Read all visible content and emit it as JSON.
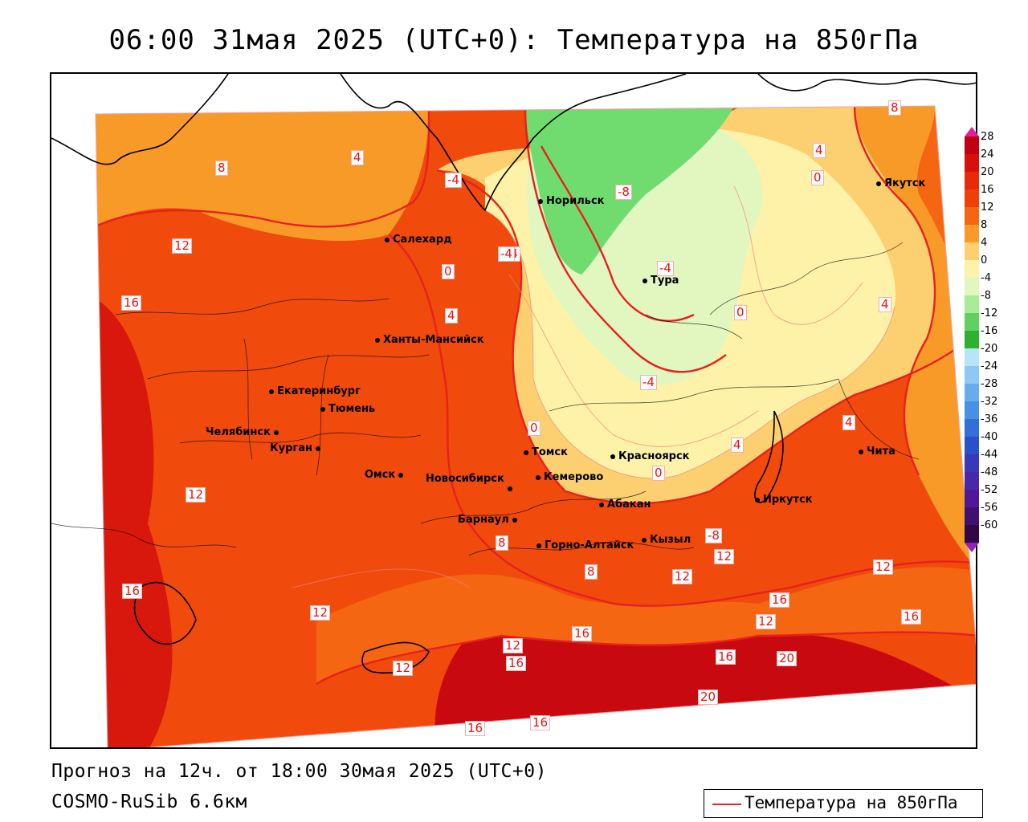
{
  "title": "06:00 31мая 2025 (UTC+0): Температура на 850гПа",
  "footer": {
    "forecast": "Прогноз на 12ч. от 18:00 30мая 2025 (UTC+0)",
    "model": "COSMO-RuSib 6.6км"
  },
  "legend": {
    "label": "Температура на 850гПа",
    "line_color": "#ee2222"
  },
  "colorbar": {
    "labels": [
      "28",
      "24",
      "20",
      "16",
      "12",
      "8",
      "4",
      "0",
      "-4",
      "-8",
      "-12",
      "-16",
      "-20",
      "-24",
      "-28",
      "-32",
      "-36",
      "-40",
      "-44",
      "-48",
      "-52",
      "-56",
      "-60"
    ],
    "colors": [
      "#c00010",
      "#d8100c",
      "#e82a0a",
      "#f0400a",
      "#f46612",
      "#f89a28",
      "#fcd070",
      "#fdf2a8",
      "#e2f6c0",
      "#a8ec98",
      "#60d060",
      "#30b030",
      "#b8e4f8",
      "#90c8f4",
      "#68acee",
      "#4890e4",
      "#3070d8",
      "#2850c8",
      "#3838b8",
      "#4828a8",
      "#501898",
      "#401070",
      "#300848"
    ]
  },
  "cities": [
    {
      "name": "Норильск"
    },
    {
      "name": "Тура"
    },
    {
      "name": "Якутск"
    },
    {
      "name": "Салехард"
    },
    {
      "name": "Ханты-Мансийск"
    },
    {
      "name": "Екатеринбург"
    },
    {
      "name": "Тюмень"
    },
    {
      "name": "Челябинск"
    },
    {
      "name": "Курган"
    },
    {
      "name": "Омск"
    },
    {
      "name": "Новосибирск"
    },
    {
      "name": "Томск"
    },
    {
      "name": "Кемерово"
    },
    {
      "name": "Красноярск"
    },
    {
      "name": "Абакан"
    },
    {
      "name": "Барнаул"
    },
    {
      "name": "Горно-Алтайск"
    },
    {
      "name": "Кызыл"
    },
    {
      "name": "Иркутск"
    },
    {
      "name": "Чита"
    }
  ],
  "isotherm_labels": [
    "8",
    "4",
    "12",
    "16",
    "0",
    "4",
    "-4",
    "-8",
    "-4",
    "-4",
    "-4",
    "0",
    "4",
    "8",
    "4",
    "0",
    "4",
    "4",
    "0",
    "8",
    "16",
    "12",
    "16",
    "12",
    "16",
    "12",
    "12",
    "16",
    "12",
    "16",
    "20",
    "20",
    "16",
    "16",
    "16",
    "12",
    "12",
    "8",
    "-8",
    "-4",
    "0",
    "12"
  ]
}
